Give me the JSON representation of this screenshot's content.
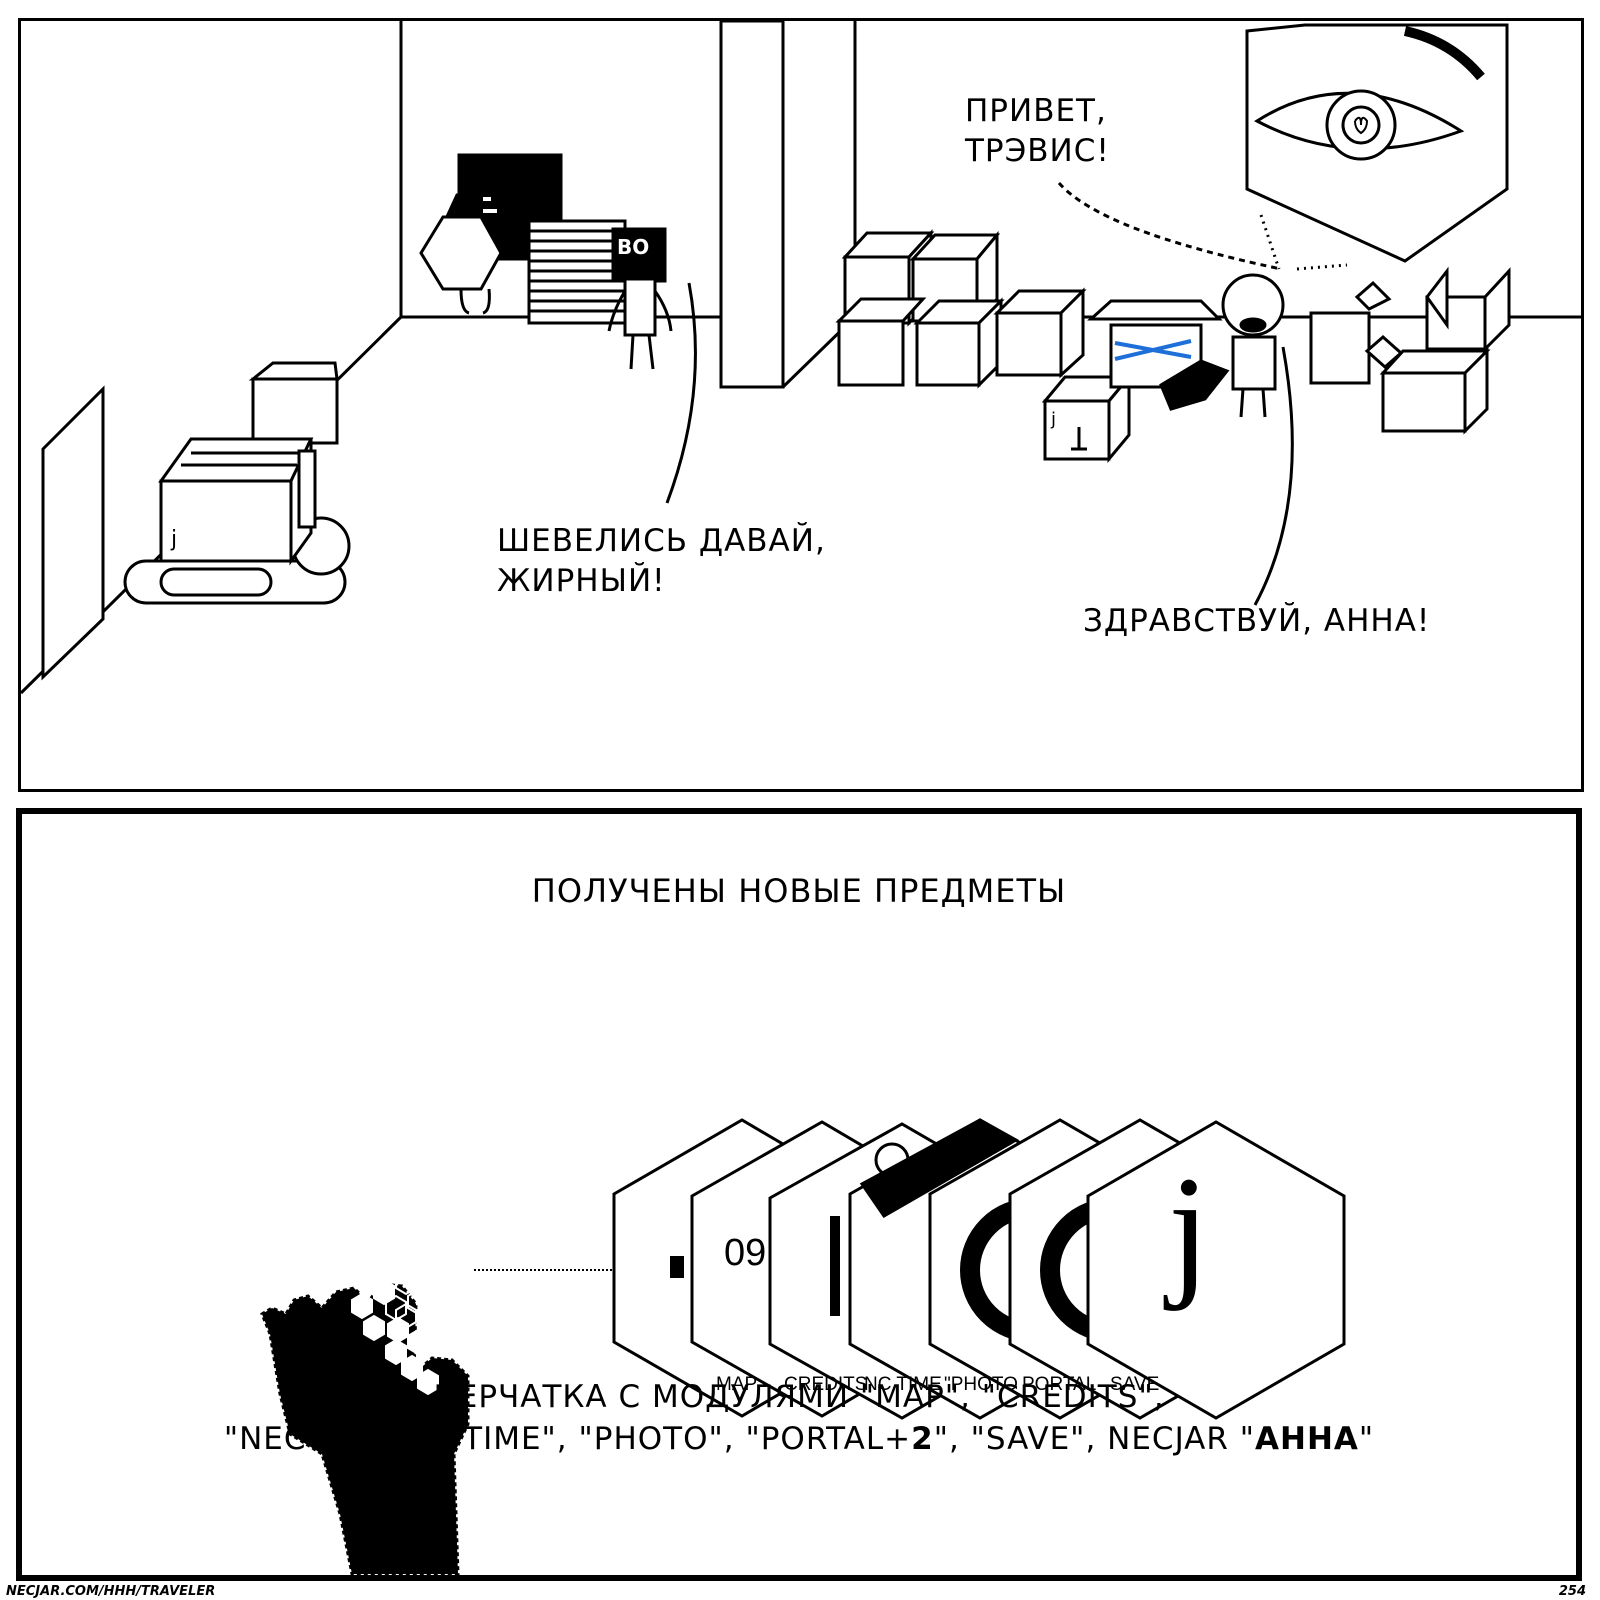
{
  "top_panel": {
    "speech_1": [
      "ШЕВЕЛИСЬ ДАВАЙ,",
      "ЖИРНЫЙ!"
    ],
    "speech_2": [
      "ПРИВЕТ,",
      "ТРЭВИС!"
    ],
    "speech_3": "ЗДРАВСТВУЙ, АННА!",
    "box_marks": [
      "j",
      "j"
    ],
    "robot_face_text": "BO"
  },
  "bottom_panel": {
    "heading": "ПОЛУЧЕНЫ НОВЫЕ ПРЕДМЕТЫ",
    "modules": [
      "MAP",
      "CREDITS",
      "NC TIME",
      "\"PHOTO",
      "PORTAL",
      "SAVE"
    ],
    "module_partial_text": "09",
    "last_module_glyph": "j",
    "description_line1": "ПЕРЧАТКА С МОДУЛЯМИ \"MAP\", \"CREDITS\",",
    "description_line2_prefix": "\"NECTAR CITY TIME\", \"PHOTO\", \"PORTAL+",
    "description_line2_bold1": "2",
    "description_line2_mid": "\", \"SAVE\", NECJAR \"",
    "description_line2_bold2": "АННА",
    "description_line2_suffix": "\""
  },
  "footer": {
    "url": "NECJAR.COM/HHH/TRAVELER",
    "page_number": "254"
  }
}
